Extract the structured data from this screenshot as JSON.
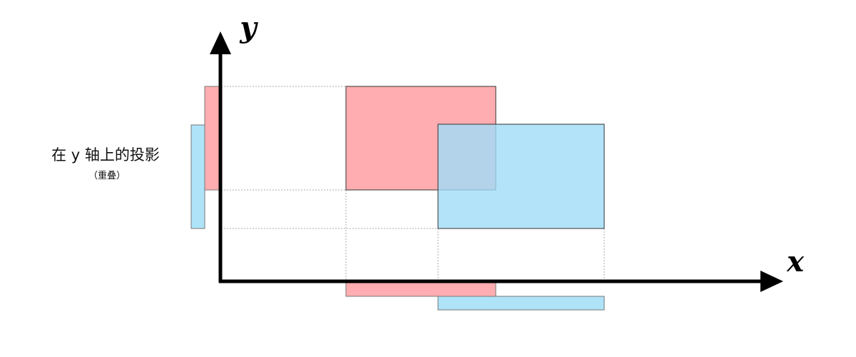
{
  "axes": {
    "x_label": "x",
    "y_label": "y"
  },
  "annotation": {
    "text": "在 y 轴上的投影",
    "note": "（重叠）"
  }
}
